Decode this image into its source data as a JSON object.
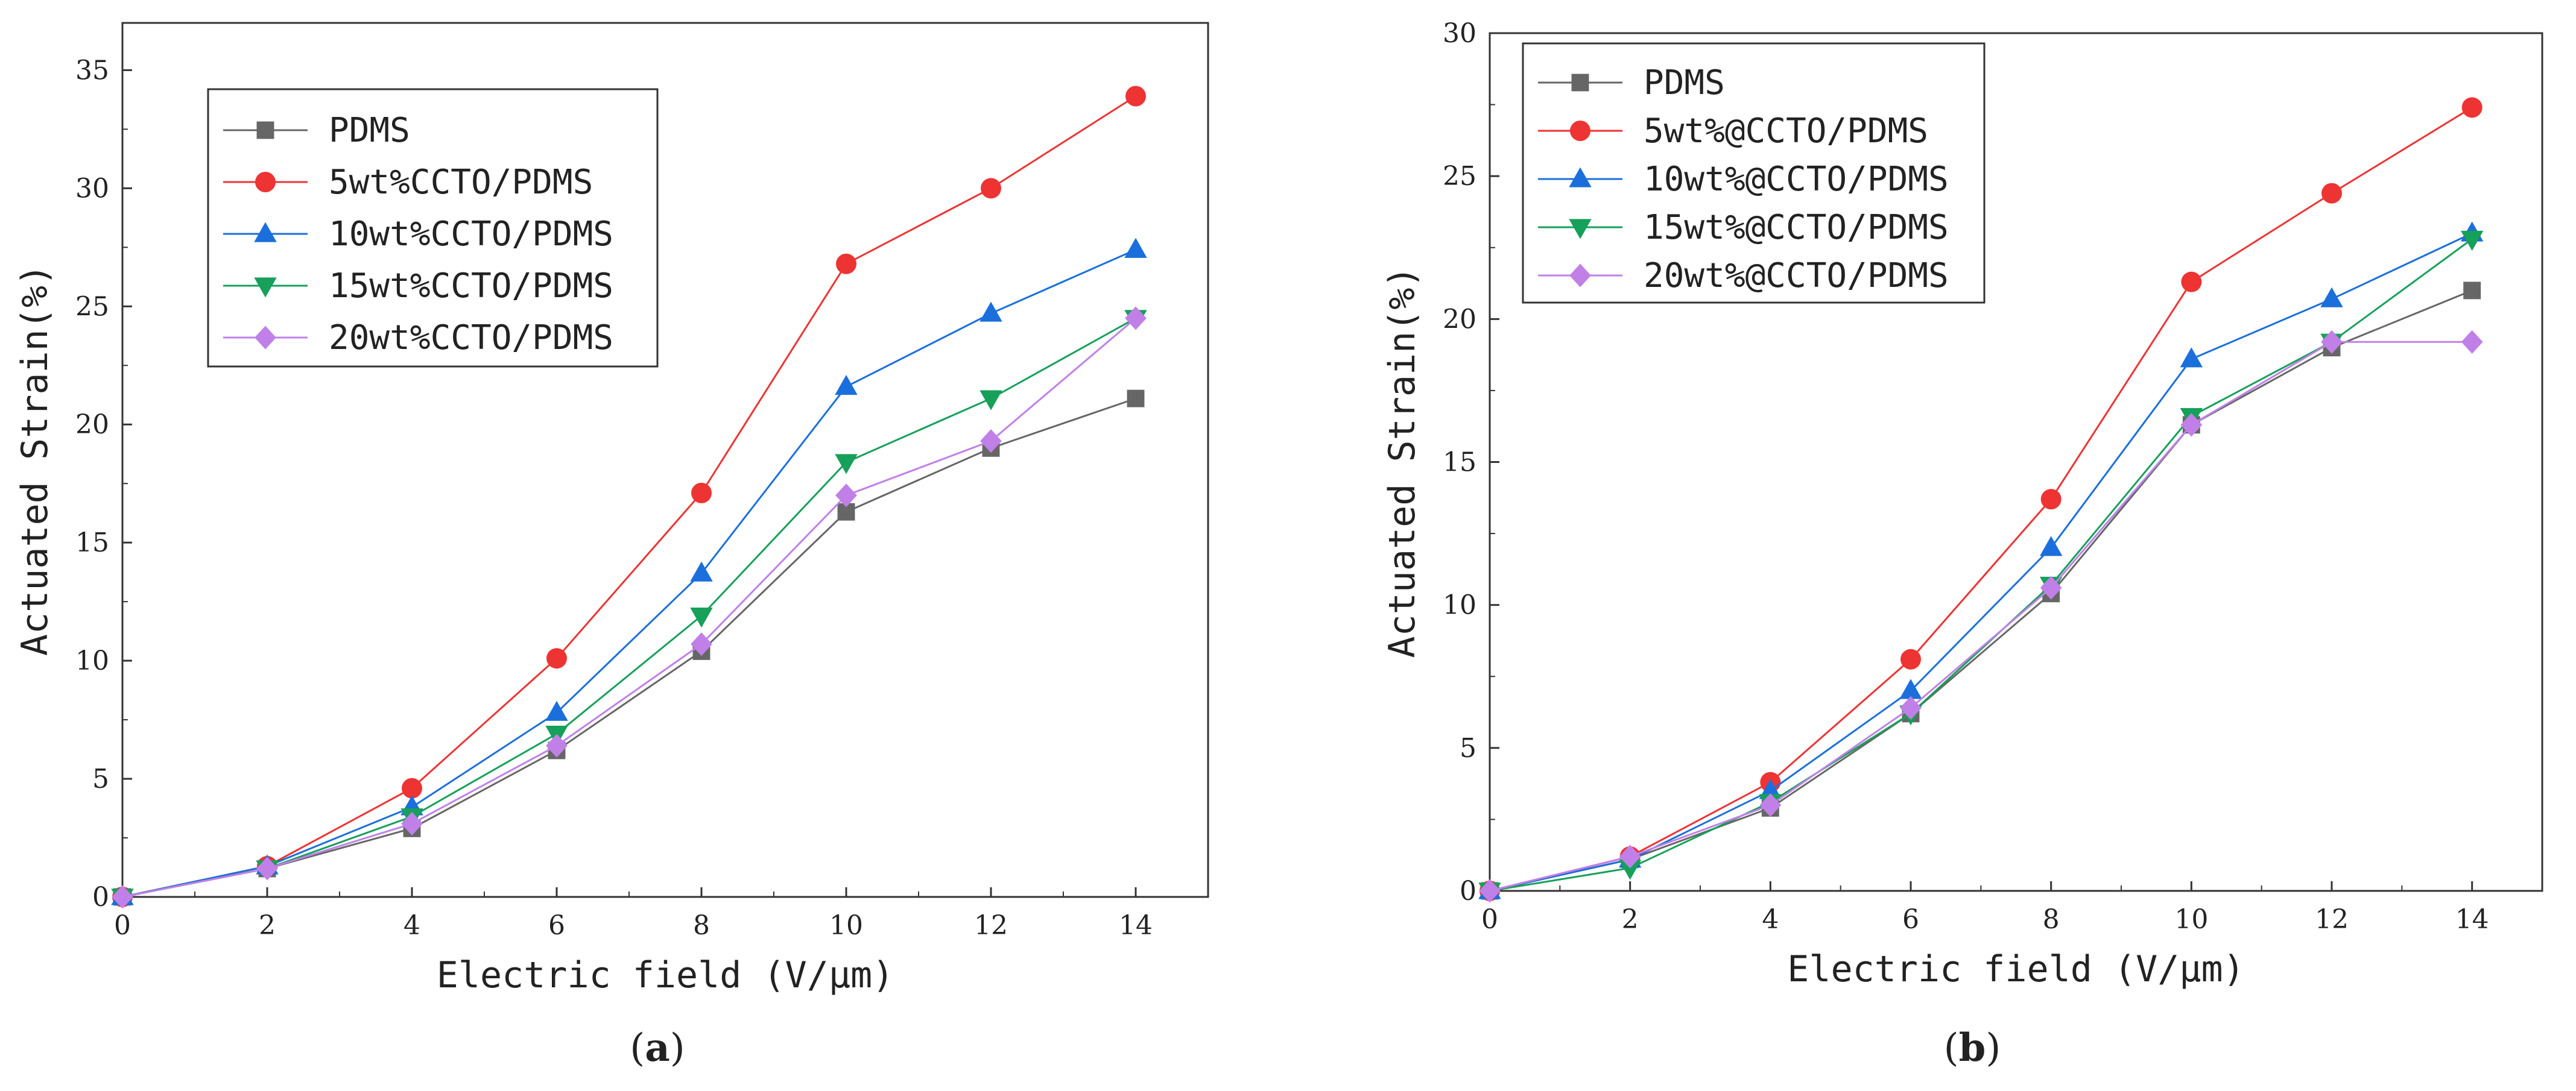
{
  "chart_data": [
    {
      "type": "line",
      "caption": {
        "open": "(",
        "letter": "a",
        "close": ")"
      },
      "xlabel": "Electric field (V/μm)",
      "ylabel": "Actuated Strain(%)",
      "xlim": [
        0,
        15
      ],
      "ylim": [
        0,
        37
      ],
      "xticks": [
        0,
        2,
        4,
        6,
        8,
        10,
        12,
        14
      ],
      "yticks": [
        0,
        5,
        10,
        15,
        20,
        25,
        30,
        35
      ],
      "x": [
        0,
        2,
        4,
        6,
        8,
        10,
        12,
        14
      ],
      "legend_position": "top-left",
      "series": [
        {
          "name": "PDMS",
          "color": "#666666",
          "marker": "square",
          "values": [
            0,
            1.2,
            2.9,
            6.2,
            10.4,
            16.3,
            19.0,
            21.1
          ]
        },
        {
          "name": "5wt%CCTO/PDMS",
          "color": "#ee3333",
          "marker": "circle",
          "values": [
            0,
            1.3,
            4.6,
            10.1,
            17.1,
            26.8,
            30.0,
            33.9
          ]
        },
        {
          "name": "10wt%CCTO/PDMS",
          "color": "#1a6fdc",
          "marker": "triangle-up",
          "values": [
            0,
            1.3,
            3.8,
            7.8,
            13.7,
            21.6,
            24.7,
            27.4
          ]
        },
        {
          "name": "15wt%CCTO/PDMS",
          "color": "#16a05a",
          "marker": "triangle-down",
          "values": [
            0,
            1.2,
            3.4,
            6.9,
            11.9,
            18.4,
            21.1,
            24.5
          ]
        },
        {
          "name": "20wt%CCTO/PDMS",
          "color": "#c080e8",
          "marker": "diamond",
          "values": [
            0,
            1.2,
            3.1,
            6.4,
            10.7,
            17.0,
            19.3,
            24.5
          ]
        }
      ]
    },
    {
      "type": "line",
      "caption": {
        "open": "(",
        "letter": "b",
        "close": ")"
      },
      "xlabel": "Electric field (V/μm)",
      "ylabel": "Actuated Strain(%)",
      "xlim": [
        0,
        15
      ],
      "ylim": [
        0,
        30
      ],
      "xticks": [
        0,
        2,
        4,
        6,
        8,
        10,
        12,
        14
      ],
      "yticks": [
        0,
        5,
        10,
        15,
        20,
        25,
        30
      ],
      "x": [
        0,
        2,
        4,
        6,
        8,
        10,
        12,
        14
      ],
      "legend_position": "top-left",
      "series": [
        {
          "name": "PDMS",
          "color": "#666666",
          "marker": "square",
          "values": [
            0,
            1.1,
            2.9,
            6.2,
            10.4,
            16.3,
            19.0,
            21.0
          ]
        },
        {
          "name": "5wt%@CCTO/PDMS",
          "color": "#ee3333",
          "marker": "circle",
          "values": [
            0,
            1.2,
            3.8,
            8.1,
            13.7,
            21.3,
            24.4,
            27.4
          ]
        },
        {
          "name": "10wt%@CCTO/PDMS",
          "color": "#1a6fdc",
          "marker": "triangle-up",
          "values": [
            0,
            1.1,
            3.5,
            7.0,
            12.0,
            18.6,
            20.7,
            23.0
          ]
        },
        {
          "name": "15wt%@CCTO/PDMS",
          "color": "#16a05a",
          "marker": "triangle-down",
          "values": [
            0,
            0.8,
            3.1,
            6.2,
            10.7,
            16.6,
            19.2,
            22.8
          ]
        },
        {
          "name": "20wt%@CCTO/PDMS",
          "color": "#c080e8",
          "marker": "diamond",
          "values": [
            0,
            1.2,
            3.0,
            6.4,
            10.6,
            16.3,
            19.2,
            19.2
          ]
        }
      ]
    }
  ]
}
